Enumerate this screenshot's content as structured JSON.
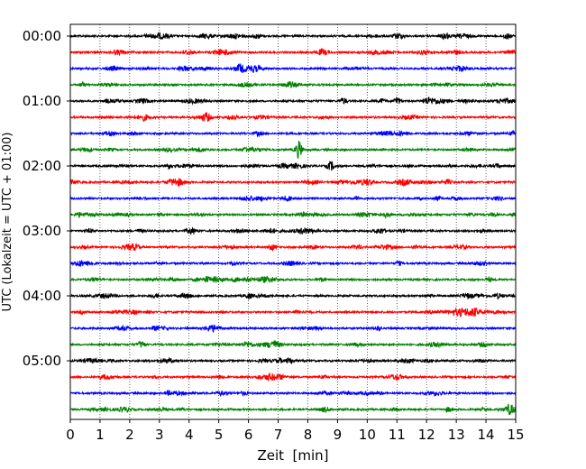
{
  "chart_data": {
    "type": "line",
    "title": "",
    "xlabel": "Zeit  [min]",
    "ylabel": "UTC (Lokalzeit = UTC + 01:00)",
    "xlim": [
      0,
      15
    ],
    "x_ticks": [
      "0",
      "1",
      "2",
      "3",
      "4",
      "5",
      "6",
      "7",
      "8",
      "9",
      "10",
      "11",
      "12",
      "13",
      "14",
      "15"
    ],
    "y_ticks": [
      "00:00",
      "01:00",
      "02:00",
      "03:00",
      "04:00",
      "05:00"
    ],
    "grid": "vertical dotted",
    "colors": [
      "#000000",
      "#ff0000",
      "#0000ff",
      "#008000"
    ],
    "series_description": "24 stacked 15-minute seismogram traces, one per quarter hour from 00:00 to 05:45 UTC; colours cycle black, red, blue, green",
    "traces": [
      {
        "start": "00:00",
        "color": "#000000"
      },
      {
        "start": "00:15",
        "color": "#ff0000"
      },
      {
        "start": "00:30",
        "color": "#0000ff"
      },
      {
        "start": "00:45",
        "color": "#008000"
      },
      {
        "start": "01:00",
        "color": "#000000"
      },
      {
        "start": "01:15",
        "color": "#ff0000"
      },
      {
        "start": "01:30",
        "color": "#0000ff"
      },
      {
        "start": "01:45",
        "color": "#008000"
      },
      {
        "start": "02:00",
        "color": "#000000"
      },
      {
        "start": "02:15",
        "color": "#ff0000"
      },
      {
        "start": "02:30",
        "color": "#0000ff"
      },
      {
        "start": "02:45",
        "color": "#008000"
      },
      {
        "start": "03:00",
        "color": "#000000"
      },
      {
        "start": "03:15",
        "color": "#ff0000"
      },
      {
        "start": "03:30",
        "color": "#0000ff"
      },
      {
        "start": "03:45",
        "color": "#008000"
      },
      {
        "start": "04:00",
        "color": "#000000"
      },
      {
        "start": "04:15",
        "color": "#ff0000"
      },
      {
        "start": "04:30",
        "color": "#0000ff"
      },
      {
        "start": "04:45",
        "color": "#008000"
      },
      {
        "start": "05:00",
        "color": "#000000"
      },
      {
        "start": "05:15",
        "color": "#ff0000"
      },
      {
        "start": "05:30",
        "color": "#0000ff"
      },
      {
        "start": "05:45",
        "color": "#008000"
      }
    ],
    "events": [
      {
        "trace": "00:00",
        "minute": 12.6,
        "amplitude": 3.0
      },
      {
        "trace": "00:00",
        "minute": 14.7,
        "amplitude": 3.0
      },
      {
        "trace": "01:00",
        "minute": 9.2,
        "amplitude": 3.0
      },
      {
        "trace": "01:00",
        "minute": 11.0,
        "amplitude": 3.5
      },
      {
        "trace": "01:15",
        "minute": 4.6,
        "amplitude": 3.0
      },
      {
        "trace": "01:45",
        "minute": 7.7,
        "amplitude": 9.0
      },
      {
        "trace": "02:00",
        "minute": 3.3,
        "amplitude": 2.5
      },
      {
        "trace": "02:00",
        "minute": 8.8,
        "amplitude": 3.0
      },
      {
        "trace": "02:30",
        "minute": 7.3,
        "amplitude": 3.0
      },
      {
        "trace": "03:00",
        "minute": 4.1,
        "amplitude": 2.5
      },
      {
        "trace": "03:15",
        "minute": 6.8,
        "amplitude": 3.0
      },
      {
        "trace": "03:45",
        "minute": 4.6,
        "amplitude": 3.0
      },
      {
        "trace": "04:00",
        "minute": 6.0,
        "amplitude": 3.0
      },
      {
        "trace": "04:45",
        "minute": 2.4,
        "amplitude": 3.5
      },
      {
        "trace": "05:00",
        "minute": 7.4,
        "amplitude": 3.0
      },
      {
        "trace": "05:45",
        "minute": 14.8,
        "amplitude": 3.5
      }
    ]
  }
}
